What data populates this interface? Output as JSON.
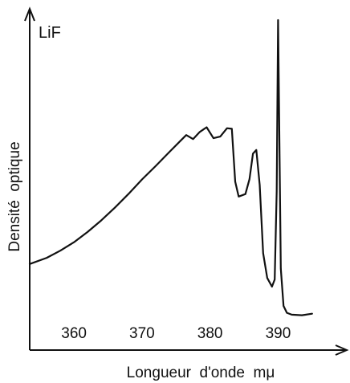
{
  "chart_data": {
    "type": "line",
    "panel_label": "LiF",
    "xlabel": "Longueur  d'onde  mμ",
    "ylabel": "Densité  optique",
    "x_ticks": [
      "360",
      "370",
      "380",
      "390"
    ],
    "x_tick_values": [
      360,
      370,
      380,
      390
    ],
    "xlim": [
      353.5,
      397.5
    ],
    "ylim": [
      0,
      1
    ],
    "y_tick_labels": [],
    "grid": false,
    "legend": "none",
    "line_color": "#111111",
    "series": [
      {
        "x": [
          353.5,
          356,
          358,
          360,
          362,
          364,
          366,
          368,
          370,
          372,
          374,
          375.5,
          376.5,
          377.5,
          378.5,
          379.5,
          380.5,
          381.5,
          382.5,
          383.2,
          383.7,
          384.2,
          385.2,
          385.8,
          386.3,
          386.8,
          387.3,
          387.8,
          388.4,
          389.1,
          389.5,
          389.8,
          390.0,
          390.2,
          390.4,
          390.8,
          391.3,
          392,
          393.5,
          395
        ],
        "y": [
          0.215,
          0.235,
          0.258,
          0.285,
          0.318,
          0.355,
          0.396,
          0.44,
          0.487,
          0.53,
          0.575,
          0.608,
          0.63,
          0.617,
          0.64,
          0.655,
          0.62,
          0.625,
          0.652,
          0.65,
          0.48,
          0.432,
          0.44,
          0.488,
          0.57,
          0.582,
          0.47,
          0.25,
          0.17,
          0.142,
          0.165,
          0.45,
          1.0,
          0.6,
          0.2,
          0.08,
          0.058,
          0.052,
          0.05,
          0.055
        ]
      }
    ]
  }
}
